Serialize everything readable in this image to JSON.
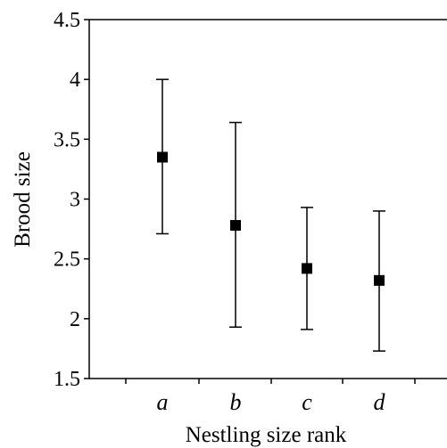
{
  "chart_data": {
    "type": "scatter",
    "title": "",
    "xlabel": "Nestling size rank",
    "ylabel": "Brood size",
    "categories": [
      "a",
      "b",
      "c",
      "d"
    ],
    "series": [
      {
        "values": [
          3.35,
          2.78,
          2.42,
          2.32
        ],
        "error_low": [
          2.71,
          1.93,
          1.91,
          1.73
        ],
        "error_high": [
          4.0,
          3.64,
          2.93,
          2.9
        ]
      }
    ],
    "ylim": [
      1.5,
      4.5
    ],
    "yticks": [
      "1.5",
      "2",
      "2.5",
      "3",
      "3.5",
      "4",
      "4.5"
    ],
    "grid": false,
    "legend": "none",
    "marker": "square",
    "color": "#000000"
  }
}
